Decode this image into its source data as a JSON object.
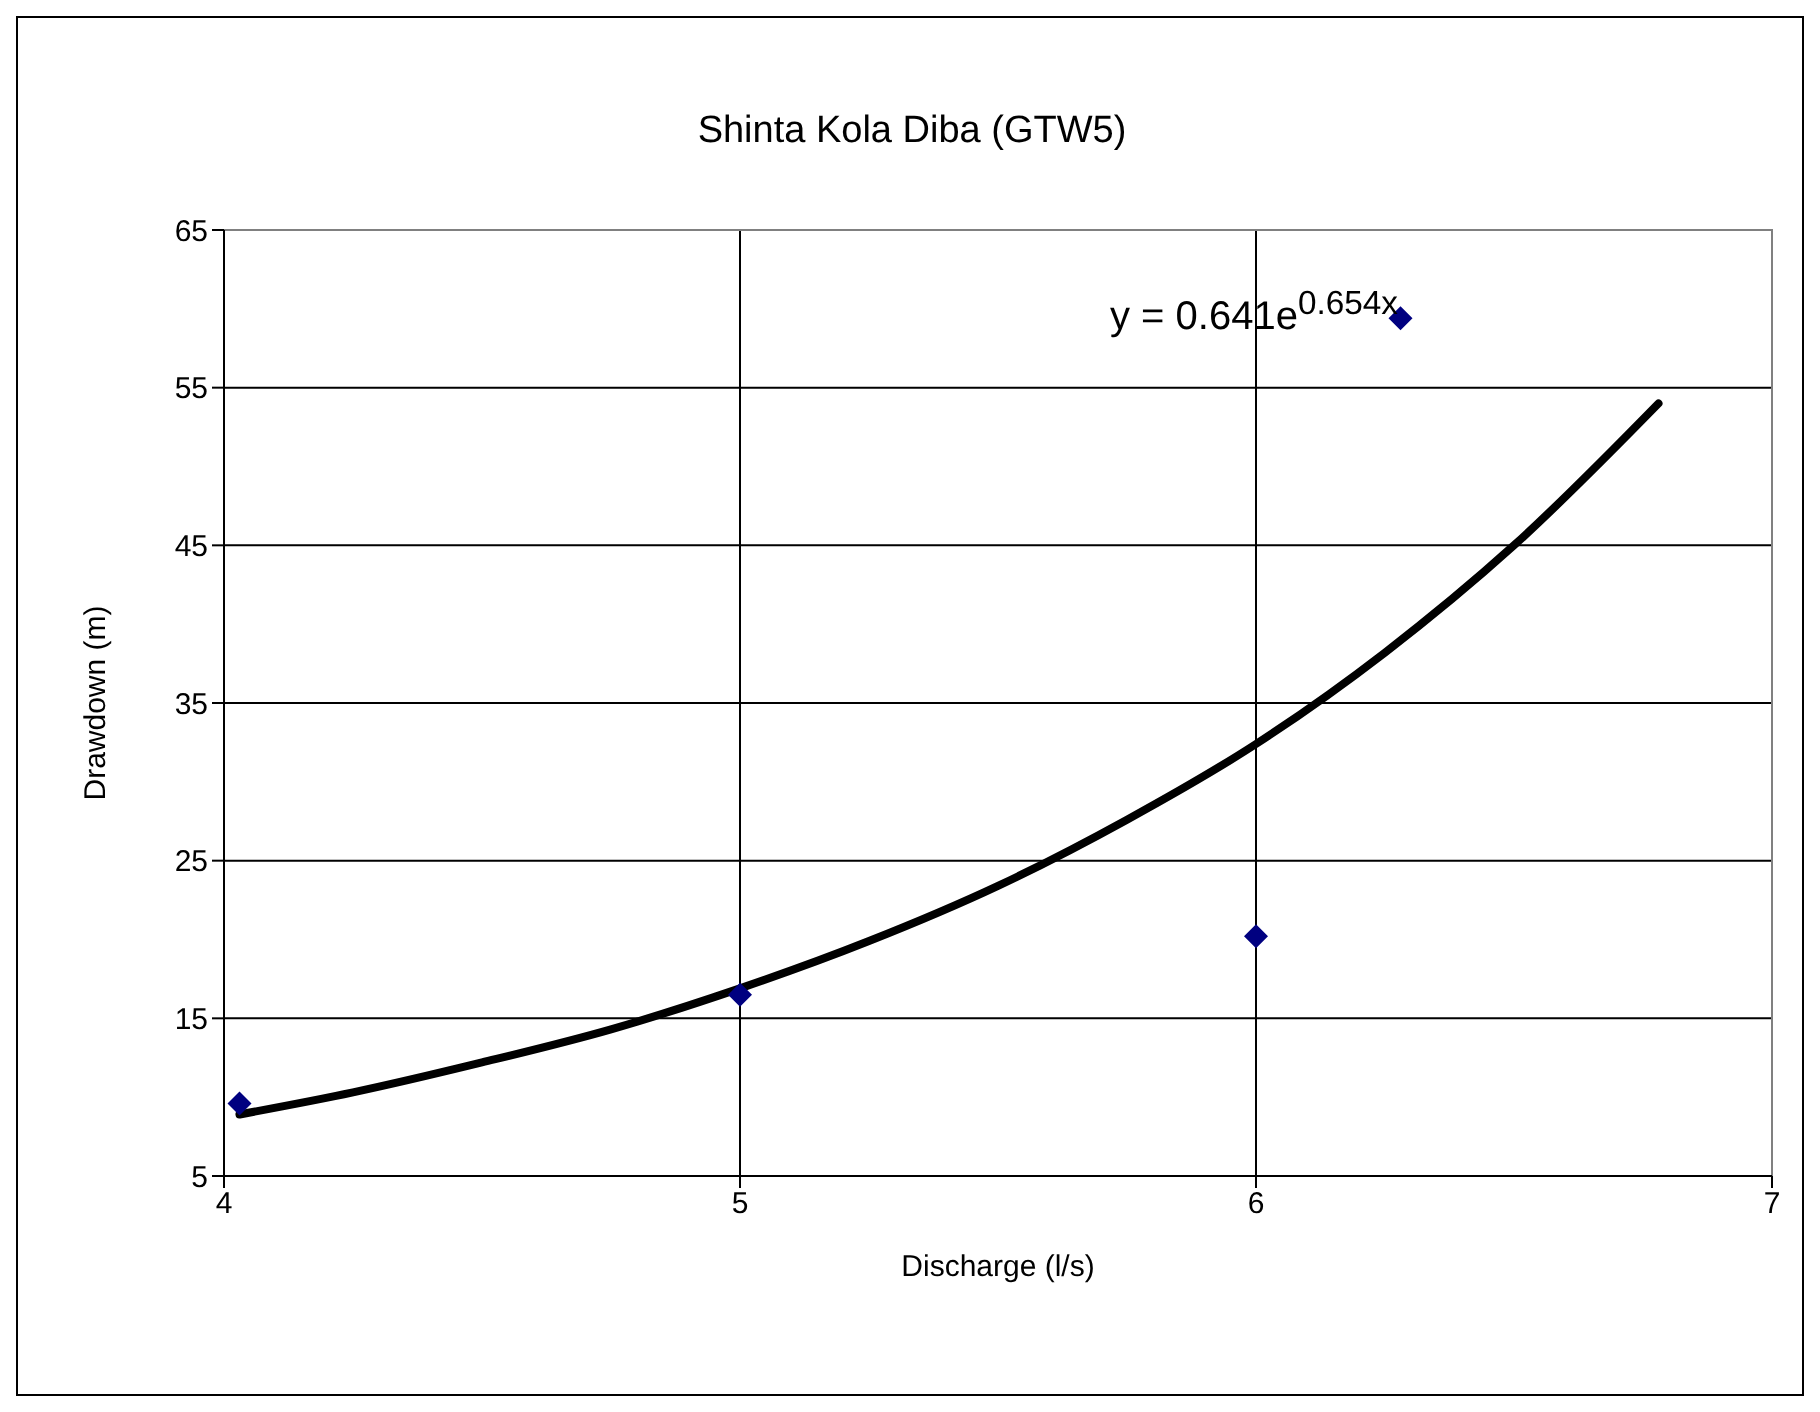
{
  "chart_data": {
    "type": "scatter",
    "title": "Shinta Kola Diba (GTW5)",
    "xlabel": "Discharge (l/s)",
    "ylabel": "Drawdown (m)",
    "xlim": [
      4,
      7
    ],
    "xticks": [
      4,
      5,
      6,
      7
    ],
    "ylim": [
      5,
      65
    ],
    "yticks": [
      5,
      15,
      25,
      35,
      45,
      55,
      65
    ],
    "grid": true,
    "series": [
      {
        "color": "#000080",
        "marker": "diamond",
        "x": [
          4.03,
          5.0,
          6.0,
          6.28
        ],
        "values": [
          9.6,
          16.5,
          20.2,
          59.4
        ]
      },
      {
        "type": "line",
        "color": "#000000",
        "marker": "none",
        "line_style": "solid",
        "x": [
          4.03,
          4.25,
          4.5,
          4.75,
          5.0,
          5.25,
          5.5,
          5.75,
          6.0,
          6.25,
          6.5,
          6.78
        ],
        "values": [
          8.9,
          10.3,
          12.2,
          14.3,
          16.9,
          19.9,
          23.4,
          27.6,
          32.4,
          38.2,
          45.0,
          54.0
        ]
      }
    ],
    "annotations": [
      "y = 0.641e$^{0.654x}$"
    ]
  }
}
